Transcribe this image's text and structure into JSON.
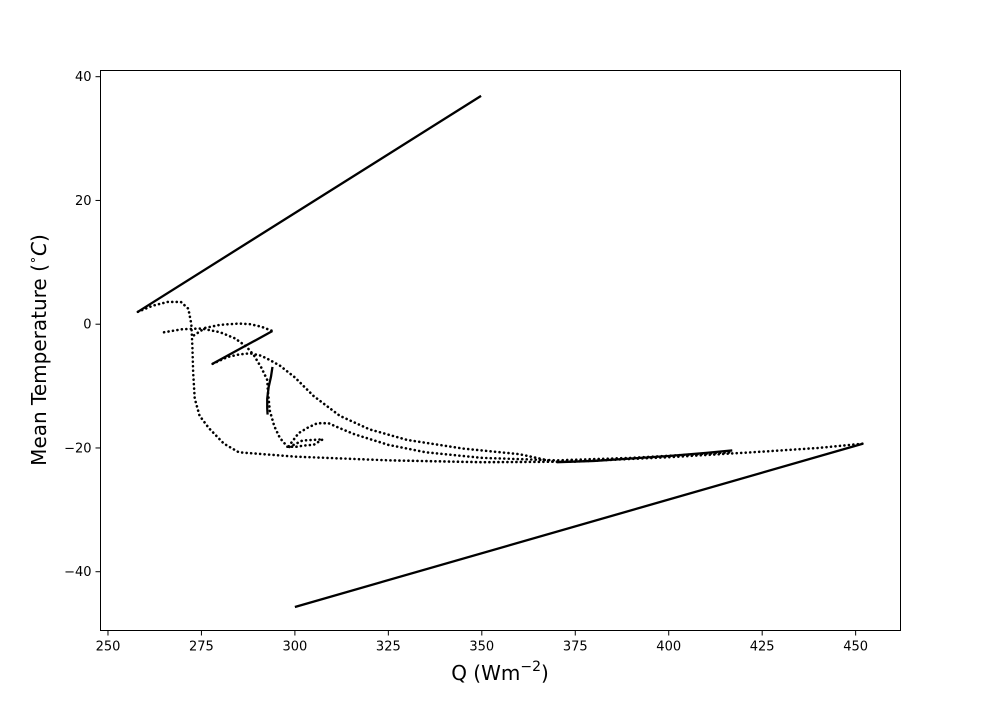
{
  "chart_data": {
    "type": "line",
    "title": "",
    "xlabel": "Q (Wm",
    "xlabel_sup": "−2",
    "xlabel_end": ")",
    "ylabel": "Mean Temperature (",
    "ylabel_sup": "∘",
    "ylabel_unit": "C",
    "ylabel_end": ")",
    "xlim": [
      248,
      462
    ],
    "ylim": [
      -49.5,
      41
    ],
    "xticks": [
      {
        "value": 250,
        "label": "250"
      },
      {
        "value": 275,
        "label": "275"
      },
      {
        "value": 300,
        "label": "300"
      },
      {
        "value": 325,
        "label": "325"
      },
      {
        "value": 350,
        "label": "350"
      },
      {
        "value": 375,
        "label": "375"
      },
      {
        "value": 400,
        "label": "400"
      },
      {
        "value": 425,
        "label": "425"
      },
      {
        "value": 450,
        "label": "450"
      }
    ],
    "yticks": [
      {
        "value": 40,
        "label": "40"
      },
      {
        "value": 20,
        "label": "20"
      },
      {
        "value": 0,
        "label": "0"
      },
      {
        "value": -20,
        "label": "−20"
      },
      {
        "value": -40,
        "label": "−40"
      }
    ],
    "grid": false,
    "colors": {
      "line": "#000000",
      "background": "#ffffff"
    },
    "series": [
      {
        "style": "solid",
        "points": [
          [
            258,
            2.0
          ],
          [
            349.8,
            36.9
          ]
        ]
      },
      {
        "style": "solid",
        "points": [
          [
            300,
            -45.7
          ],
          [
            452,
            -19.3
          ]
        ]
      },
      {
        "style": "solid",
        "points": [
          [
            278,
            -6.4
          ],
          [
            294,
            -1.1
          ]
        ]
      },
      {
        "style": "solid",
        "points": [
          [
            294,
            -6.9
          ],
          [
            293.6,
            -8.5
          ],
          [
            293,
            -10.1
          ],
          [
            292.6,
            -12.0
          ],
          [
            292.6,
            -13.6
          ],
          [
            292.7,
            -14.6
          ]
        ]
      },
      {
        "style": "solid",
        "points": [
          [
            370,
            -22.3
          ],
          [
            380,
            -22.1
          ],
          [
            390,
            -21.7
          ],
          [
            400,
            -21.3
          ],
          [
            410,
            -20.8
          ],
          [
            417,
            -20.4
          ]
        ]
      },
      {
        "style": "dotted",
        "points": [
          [
            258,
            2.0
          ],
          [
            262,
            3.0
          ],
          [
            266,
            3.6
          ],
          [
            269.5,
            3.6
          ],
          [
            271.5,
            2.5
          ],
          [
            272.3,
            0.0
          ],
          [
            272.6,
            -4.0
          ],
          [
            272.8,
            -8.0
          ],
          [
            273.2,
            -12.0
          ],
          [
            274.5,
            -14.8
          ],
          [
            277,
            -16.8
          ],
          [
            281,
            -19.3
          ],
          [
            285,
            -20.7
          ],
          [
            300,
            -21.4
          ],
          [
            325,
            -22.0
          ],
          [
            350,
            -22.3
          ],
          [
            375,
            -22.2
          ],
          [
            400,
            -21.5
          ],
          [
            425,
            -20.6
          ],
          [
            440,
            -20.0
          ],
          [
            452,
            -19.3
          ]
        ]
      },
      {
        "style": "dotted",
        "points": [
          [
            265,
            -1.3
          ],
          [
            270,
            -0.8
          ],
          [
            275,
            -0.7
          ],
          [
            280,
            -1.3
          ],
          [
            284,
            -2.3
          ],
          [
            287,
            -3.6
          ],
          [
            289,
            -5.0
          ],
          [
            291,
            -7.0
          ],
          [
            292.6,
            -9.0
          ],
          [
            292.8,
            -11.0
          ],
          [
            293.3,
            -14.0
          ],
          [
            294.5,
            -16.5
          ],
          [
            296,
            -18.4
          ],
          [
            298,
            -19.8
          ],
          [
            300.5,
            -19.8
          ],
          [
            302.5,
            -19.6
          ],
          [
            305,
            -19.5
          ],
          [
            307.5,
            -18.6
          ],
          [
            302,
            -18.8
          ],
          [
            298,
            -20.0
          ],
          [
            301,
            -17.6
          ],
          [
            303.5,
            -16.7
          ],
          [
            306,
            -16.0
          ],
          [
            309,
            -16.0
          ],
          [
            312,
            -16.8
          ],
          [
            316,
            -17.8
          ],
          [
            325,
            -19.5
          ],
          [
            335,
            -20.7
          ],
          [
            350,
            -21.6
          ],
          [
            370,
            -22.0
          ],
          [
            390,
            -21.6
          ],
          [
            417,
            -20.7
          ]
        ]
      },
      {
        "style": "dotted",
        "points": [
          [
            278,
            -6.4
          ],
          [
            282,
            -5.3
          ],
          [
            285,
            -4.9
          ],
          [
            288,
            -4.7
          ],
          [
            291,
            -5.1
          ],
          [
            293,
            -5.7
          ],
          [
            296,
            -6.7
          ],
          [
            300,
            -8.6
          ],
          [
            305,
            -11.6
          ],
          [
            312,
            -14.8
          ],
          [
            320,
            -17.0
          ],
          [
            330,
            -18.7
          ],
          [
            345,
            -20.1
          ],
          [
            360,
            -21.0
          ],
          [
            370,
            -22.3
          ]
        ]
      },
      {
        "style": "dotted",
        "points": [
          [
            273,
            -1.8
          ],
          [
            276,
            -0.6
          ],
          [
            280,
            -0.1
          ],
          [
            285,
            0.1
          ],
          [
            288,
            0.0
          ],
          [
            291,
            -0.4
          ],
          [
            294,
            -1.1
          ]
        ]
      }
    ]
  }
}
